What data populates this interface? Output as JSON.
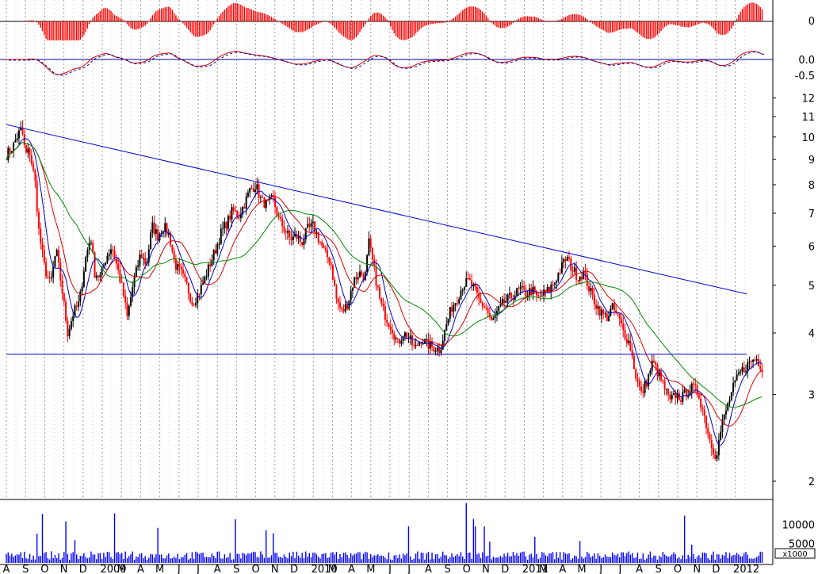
{
  "chart_data": {
    "type": "line",
    "panels": [
      {
        "name": "histogram-oscillator",
        "type": "bar",
        "color": "#ff0000",
        "y_ticks": [
          "0"
        ]
      },
      {
        "name": "line-oscillator",
        "type": "line",
        "color": "#cc0000",
        "y_ticks": [
          "0.0",
          "-0.5"
        ]
      },
      {
        "name": "price",
        "type": "candlestick",
        "y_scale": "log",
        "y_ticks": [
          "12",
          "11",
          "10",
          "9",
          "8",
          "7",
          "6",
          "5",
          "4",
          "3",
          "2"
        ],
        "ylim": [
          1.85,
          13
        ],
        "x_ticks": [
          "A",
          "S",
          "O",
          "N",
          "D",
          "2009",
          "M",
          "A",
          "M",
          "J",
          "J",
          "A",
          "S",
          "O",
          "N",
          "D",
          "2010",
          "M",
          "A",
          "M",
          "J",
          "J",
          "A",
          "S",
          "O",
          "N",
          "D",
          "2011",
          "M",
          "A",
          "M",
          "J",
          "J",
          "A",
          "S",
          "O",
          "N",
          "D",
          "2012"
        ],
        "trendlines": [
          {
            "kind": "resistance",
            "color": "#0000cc",
            "from": [
              0,
              10.6
            ],
            "to": [
              38.6,
              4.8
            ]
          },
          {
            "kind": "support",
            "color": "#0000cc",
            "from": [
              0,
              3.62
            ],
            "to": [
              38.6,
              3.62
            ]
          }
        ],
        "series": [
          {
            "kind": "close",
            "points": [
              [
                0,
                9.2
              ],
              [
                0.3,
                9.5
              ],
              [
                0.6,
                10.1
              ],
              [
                0.8,
                10.4
              ],
              [
                1.0,
                9.2
              ],
              [
                1.2,
                9.4
              ],
              [
                1.5,
                8.1
              ],
              [
                1.7,
                6.4
              ],
              [
                2.0,
                5.4
              ],
              [
                2.3,
                5.0
              ],
              [
                2.6,
                5.9
              ],
              [
                2.9,
                4.9
              ],
              [
                3.2,
                4.0
              ],
              [
                3.5,
                4.4
              ],
              [
                3.8,
                4.6
              ],
              [
                4.1,
                5.6
              ],
              [
                4.4,
                6.3
              ],
              [
                4.6,
                5.3
              ],
              [
                4.9,
                5.2
              ],
              [
                5.2,
                5.7
              ],
              [
                5.5,
                6.0
              ],
              [
                5.8,
                5.4
              ],
              [
                6.1,
                4.8
              ],
              [
                6.3,
                4.3
              ],
              [
                6.6,
                5.0
              ],
              [
                7.0,
                5.8
              ],
              [
                7.3,
                5.5
              ],
              [
                7.6,
                6.6
              ],
              [
                7.9,
                6.3
              ],
              [
                8.2,
                6.6
              ],
              [
                8.5,
                6.3
              ],
              [
                8.8,
                5.5
              ],
              [
                9.1,
                5.3
              ],
              [
                9.4,
                5.0
              ],
              [
                9.7,
                4.6
              ],
              [
                10.0,
                4.8
              ],
              [
                10.3,
                5.1
              ],
              [
                10.6,
                5.5
              ],
              [
                10.9,
                5.9
              ],
              [
                11.2,
                6.4
              ],
              [
                11.5,
                6.7
              ],
              [
                11.8,
                7.1
              ],
              [
                12.1,
                6.9
              ],
              [
                12.4,
                7.3
              ],
              [
                12.7,
                7.8
              ],
              [
                13.0,
                8.0
              ],
              [
                13.3,
                7.4
              ],
              [
                13.6,
                7.3
              ],
              [
                13.9,
                7.5
              ],
              [
                14.2,
                6.8
              ],
              [
                14.5,
                6.5
              ],
              [
                14.8,
                6.2
              ],
              [
                15.1,
                6.3
              ],
              [
                15.4,
                6.1
              ],
              [
                15.7,
                6.5
              ],
              [
                16.0,
                6.6
              ],
              [
                16.3,
                6.2
              ],
              [
                16.6,
                5.8
              ],
              [
                16.9,
                5.6
              ],
              [
                17.2,
                4.7
              ],
              [
                17.5,
                4.4
              ],
              [
                17.8,
                4.6
              ],
              [
                18.1,
                5.1
              ],
              [
                18.4,
                5.3
              ],
              [
                18.7,
                5.2
              ],
              [
                18.9,
                6.1
              ],
              [
                19.2,
                5.3
              ],
              [
                19.5,
                4.6
              ],
              [
                19.8,
                4.3
              ],
              [
                20.1,
                4.1
              ],
              [
                20.4,
                3.8
              ],
              [
                20.7,
                4.0
              ],
              [
                21.0,
                3.9
              ],
              [
                21.3,
                3.7
              ],
              [
                21.6,
                3.9
              ],
              [
                21.9,
                3.8
              ],
              [
                22.2,
                3.75
              ],
              [
                22.6,
                3.7
              ],
              [
                22.9,
                4.1
              ],
              [
                23.2,
                4.5
              ],
              [
                23.5,
                4.7
              ],
              [
                23.8,
                5.0
              ],
              [
                24.1,
                5.1
              ],
              [
                24.4,
                4.9
              ],
              [
                24.7,
                4.6
              ],
              [
                25.0,
                4.5
              ],
              [
                25.3,
                4.2
              ],
              [
                25.6,
                4.4
              ],
              [
                25.9,
                4.6
              ],
              [
                26.2,
                4.7
              ],
              [
                26.5,
                4.8
              ],
              [
                26.8,
                4.9
              ],
              [
                27.1,
                4.8
              ],
              [
                27.4,
                4.9
              ],
              [
                27.7,
                4.7
              ],
              [
                28.0,
                4.8
              ],
              [
                28.3,
                4.9
              ],
              [
                28.6,
                5.1
              ],
              [
                28.9,
                5.4
              ],
              [
                29.2,
                5.7
              ],
              [
                29.5,
                5.4
              ],
              [
                29.8,
                5.2
              ],
              [
                30.1,
                5.3
              ],
              [
                30.4,
                4.9
              ],
              [
                30.7,
                4.6
              ],
              [
                31.0,
                4.4
              ],
              [
                31.3,
                4.3
              ],
              [
                31.6,
                4.5
              ],
              [
                31.9,
                4.3
              ],
              [
                32.2,
                4.0
              ],
              [
                32.5,
                3.8
              ],
              [
                32.8,
                3.3
              ],
              [
                33.1,
                3.0
              ],
              [
                33.4,
                3.2
              ],
              [
                33.7,
                3.5
              ],
              [
                34.0,
                3.3
              ],
              [
                34.3,
                3.1
              ],
              [
                34.6,
                2.9
              ],
              [
                34.9,
                3.0
              ],
              [
                35.2,
                2.95
              ],
              [
                35.5,
                3.05
              ],
              [
                35.8,
                3.1
              ],
              [
                36.1,
                3.0
              ],
              [
                36.4,
                2.7
              ],
              [
                36.7,
                2.4
              ],
              [
                37.0,
                2.25
              ],
              [
                37.3,
                2.6
              ],
              [
                37.6,
                2.85
              ],
              [
                37.9,
                3.1
              ],
              [
                38.2,
                3.3
              ],
              [
                38.5,
                3.4
              ],
              [
                38.8,
                3.5
              ],
              [
                39.1,
                3.55
              ],
              [
                39.4,
                3.4
              ]
            ]
          },
          {
            "kind": "moving-average-short",
            "color": "#0000cc"
          },
          {
            "kind": "moving-average-medium",
            "color": "#dd0000"
          },
          {
            "kind": "moving-average-long",
            "color": "#008800"
          }
        ]
      },
      {
        "name": "volume",
        "type": "bar",
        "color": "#0000ff",
        "y_ticks": [
          "10000",
          "5000"
        ],
        "unit_label": "x1000",
        "ylim": [
          0,
          16000
        ]
      }
    ]
  }
}
